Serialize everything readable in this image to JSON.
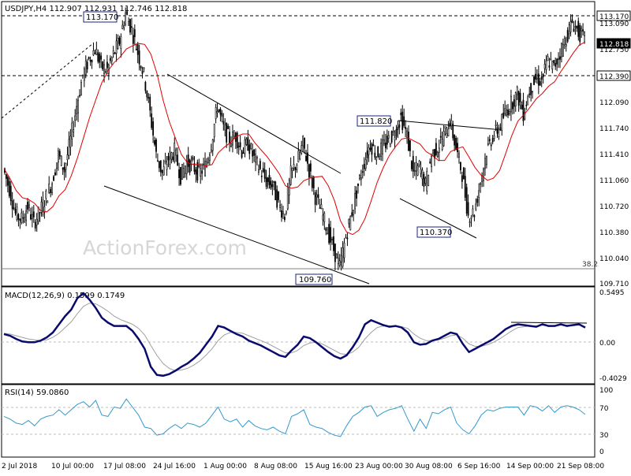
{
  "colors": {
    "background": "#ffffff",
    "candles": "#000000",
    "ma": "#e00000",
    "macd": "#0a0a6e",
    "signal": "#a0a0a0",
    "rsi": "#3399cc",
    "grid": "#bdbdbd",
    "label_border": "#1a237e",
    "watermark": "#d6d6d6"
  },
  "header": {
    "title": "USDJPY,H4  112.907 112.931 112.746 112.818"
  },
  "watermark": "ActionForex.com",
  "chart_data": [
    {
      "type": "candlestick",
      "name": "price",
      "ylim": [
        109.6,
        113.3
      ],
      "y_ticks": [
        "113.090",
        "112.750",
        "112.090",
        "111.740",
        "111.410",
        "111.060",
        "110.720",
        "110.380",
        "110.040",
        "109.710"
      ],
      "price_tags": [
        "113.170",
        "112.818",
        "112.390"
      ],
      "horizontal_levels": [
        113.17,
        112.39
      ],
      "fib_label": "38.2",
      "annotations": [
        "113.170",
        "111.820",
        "110.370",
        "109.760"
      ],
      "ma_label": "",
      "close": [
        111.12,
        110.85,
        110.52,
        110.45,
        110.62,
        110.4,
        110.55,
        110.74,
        110.95,
        111.3,
        111.1,
        111.5,
        111.95,
        112.35,
        112.55,
        112.7,
        112.46,
        112.42,
        112.62,
        112.8,
        113.17,
        112.95,
        112.65,
        112.35,
        111.85,
        111.3,
        111.05,
        111.25,
        111.35,
        111.02,
        111.2,
        111.15,
        111.05,
        111.15,
        111.45,
        111.95,
        111.65,
        111.5,
        111.55,
        111.35,
        111.45,
        111.25,
        111.1,
        110.95,
        110.9,
        110.65,
        110.5,
        111.05,
        111.2,
        111.45,
        111.1,
        110.75,
        110.55,
        110.3,
        110.05,
        109.82,
        110.22,
        110.55,
        110.9,
        111.2,
        111.45,
        111.3,
        111.4,
        111.5,
        111.6,
        111.8,
        111.55,
        111.05,
        111.15,
        110.9,
        111.3,
        111.4,
        111.55,
        111.75,
        111.38,
        111.05,
        110.5,
        110.55,
        110.95,
        111.35,
        111.55,
        111.65,
        111.85,
        111.98,
        112.1,
        111.85,
        112.15,
        112.3,
        112.28,
        112.55,
        112.45,
        112.65,
        112.85,
        113.05,
        112.92,
        112.82
      ]
    },
    {
      "type": "line",
      "name": "macd",
      "title": "MACD(12,26,9) 0.1599 0.1749",
      "ylim": [
        -0.5,
        0.62
      ],
      "y_ticks": [
        "0.5495",
        "0.00",
        "-0.4029"
      ],
      "macd": [
        0.08,
        0.06,
        0.02,
        -0.01,
        -0.02,
        -0.02,
        0.0,
        0.04,
        0.1,
        0.2,
        0.3,
        0.38,
        0.52,
        0.58,
        0.5,
        0.4,
        0.28,
        0.22,
        0.18,
        0.18,
        0.18,
        0.12,
        0.02,
        -0.1,
        -0.32,
        -0.42,
        -0.43,
        -0.41,
        -0.37,
        -0.32,
        -0.28,
        -0.22,
        -0.15,
        -0.05,
        0.05,
        0.18,
        0.16,
        0.12,
        0.08,
        0.05,
        0.0,
        -0.03,
        -0.06,
        -0.1,
        -0.14,
        -0.18,
        -0.2,
        -0.12,
        -0.05,
        0.05,
        0.03,
        -0.02,
        -0.08,
        -0.14,
        -0.19,
        -0.22,
        -0.18,
        -0.08,
        0.04,
        0.2,
        0.25,
        0.22,
        0.19,
        0.17,
        0.18,
        0.16,
        0.1,
        -0.02,
        -0.05,
        -0.04,
        0.0,
        0.02,
        0.06,
        0.1,
        0.08,
        -0.04,
        -0.14,
        -0.1,
        -0.06,
        -0.02,
        0.02,
        0.08,
        0.14,
        0.18,
        0.2,
        0.19,
        0.18,
        0.17,
        0.2,
        0.18,
        0.18,
        0.2,
        0.18,
        0.19,
        0.2,
        0.16
      ],
      "signal": [
        0.09,
        0.08,
        0.06,
        0.04,
        0.02,
        0.01,
        0.0,
        0.01,
        0.04,
        0.09,
        0.16,
        0.23,
        0.33,
        0.42,
        0.46,
        0.45,
        0.41,
        0.36,
        0.3,
        0.26,
        0.23,
        0.2,
        0.15,
        0.07,
        -0.06,
        -0.18,
        -0.28,
        -0.34,
        -0.37,
        -0.36,
        -0.34,
        -0.3,
        -0.25,
        -0.18,
        -0.1,
        0.0,
        0.07,
        0.1,
        0.1,
        0.09,
        0.06,
        0.03,
        0.0,
        -0.03,
        -0.07,
        -0.11,
        -0.15,
        -0.15,
        -0.12,
        -0.06,
        -0.03,
        -0.02,
        -0.04,
        -0.08,
        -0.12,
        -0.16,
        -0.17,
        -0.14,
        -0.08,
        0.02,
        0.1,
        0.16,
        0.18,
        0.18,
        0.18,
        0.17,
        0.15,
        0.08,
        0.03,
        0.0,
        0.0,
        0.01,
        0.03,
        0.06,
        0.07,
        0.03,
        -0.04,
        -0.07,
        -0.07,
        -0.05,
        -0.02,
        0.02,
        0.07,
        0.12,
        0.16,
        0.17,
        0.18,
        0.18,
        0.19,
        0.18,
        0.18,
        0.19,
        0.19,
        0.19,
        0.19,
        0.17
      ]
    },
    {
      "type": "line",
      "name": "rsi",
      "title": "RSI(14) 59.0860",
      "ylim": [
        0,
        100
      ],
      "y_ticks": [
        100,
        70,
        30,
        0
      ],
      "levels": [
        70,
        30
      ],
      "values": [
        56,
        52,
        46,
        44,
        50,
        42,
        52,
        56,
        58,
        66,
        58,
        66,
        74,
        78,
        70,
        80,
        58,
        56,
        70,
        68,
        82,
        70,
        58,
        40,
        38,
        28,
        30,
        38,
        44,
        38,
        46,
        44,
        40,
        46,
        58,
        70,
        52,
        48,
        52,
        40,
        50,
        42,
        38,
        36,
        40,
        34,
        30,
        56,
        60,
        66,
        44,
        40,
        38,
        32,
        28,
        26,
        42,
        56,
        62,
        70,
        72,
        56,
        62,
        66,
        68,
        72,
        52,
        34,
        52,
        38,
        62,
        60,
        66,
        70,
        46,
        36,
        30,
        42,
        58,
        66,
        64,
        68,
        70,
        70,
        70,
        58,
        72,
        70,
        64,
        72,
        62,
        70,
        72,
        70,
        66,
        59
      ]
    }
  ],
  "x_axis": {
    "labels": [
      "2 Jul 2018",
      "10 Jul 00:00",
      "17 Jul 08:00",
      "24 Jul 16:00",
      "1 Aug 00:00",
      "8 Aug 08:00",
      "15 Aug 16:00",
      "23 Aug 00:00",
      "30 Aug 08:00",
      "6 Sep 16:00",
      "14 Sep 00:00",
      "21 Sep 08:00"
    ]
  }
}
